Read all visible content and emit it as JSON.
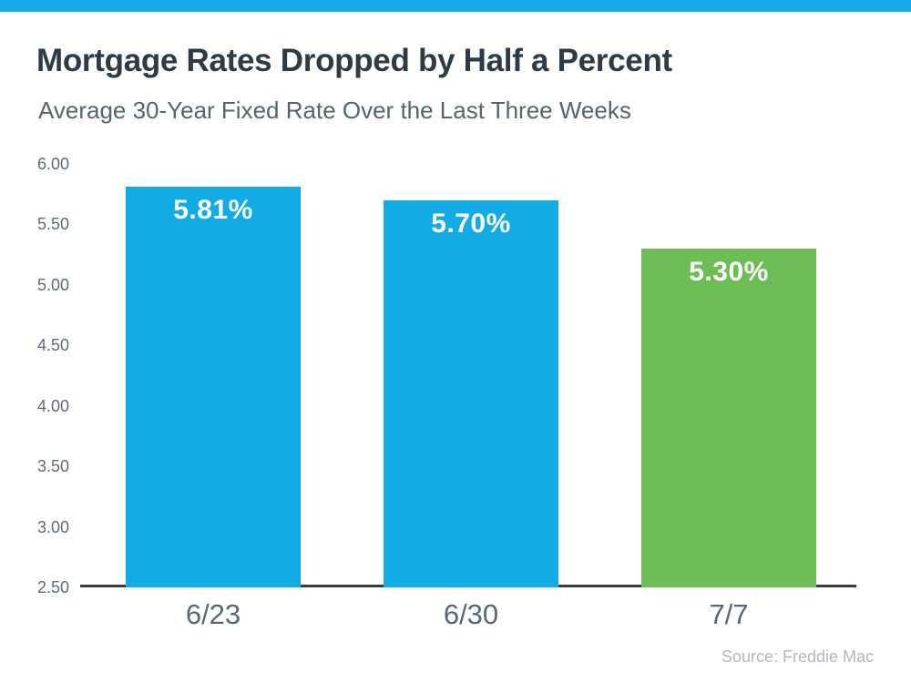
{
  "chart_data": {
    "type": "bar",
    "title": "Mortgage Rates Dropped by Half a Percent",
    "subtitle": "Average 30-Year Fixed Rate Over the Last Three Weeks",
    "categories": [
      "6/23",
      "6/30",
      "7/7"
    ],
    "values": [
      5.81,
      5.7,
      5.3
    ],
    "value_labels": [
      "5.81%",
      "5.70%",
      "5.30%"
    ],
    "bar_colors": [
      "#13ABE5",
      "#13ABE5",
      "#6CBE54"
    ],
    "xlabel": "",
    "ylabel": "",
    "ylim": [
      2.5,
      6.0
    ],
    "ytick_step": 0.5,
    "ytick_labels": [
      "6.00",
      "5.50",
      "5.00",
      "4.50",
      "4.00",
      "3.50",
      "3.00",
      "2.50"
    ],
    "grid": false,
    "legend": null,
    "source": "Source: Freddie Mac"
  },
  "colors": {
    "accent_strip": "#13ABE5",
    "blue_bar": "#13ABE5",
    "green_bar": "#6CBE54",
    "title_text": "#2D3B45",
    "subtitle_text": "#54656F",
    "axis_line": "#363B40",
    "tick_text": "#5D6C7B",
    "xlabel_text": "#56687A",
    "bar_value_text": "#FFFFFF",
    "source_text": "#AFB9C3"
  }
}
